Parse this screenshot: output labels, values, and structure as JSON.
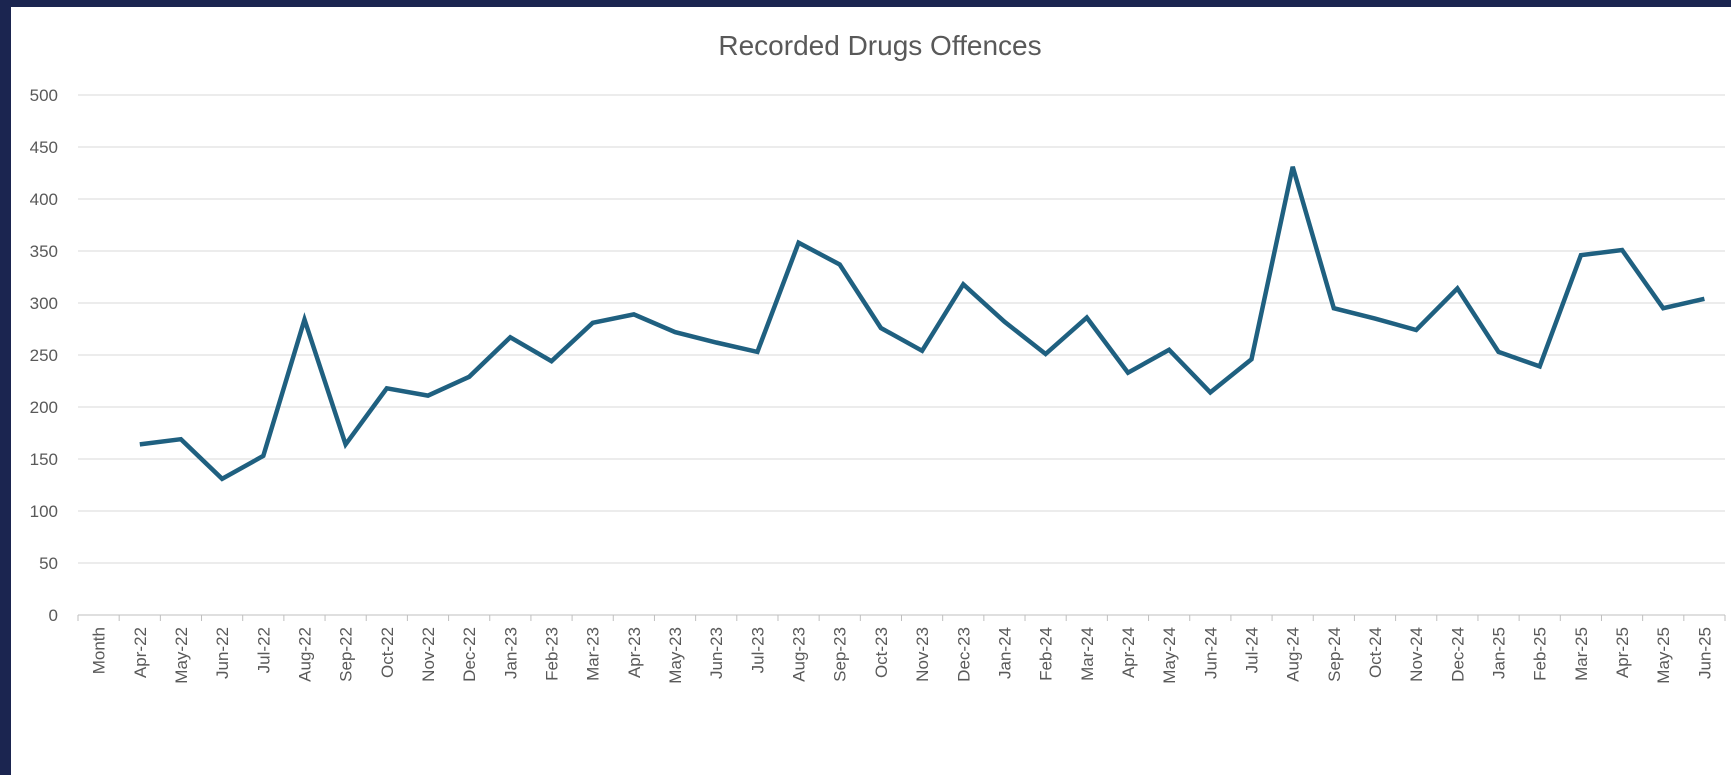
{
  "chart_data": {
    "type": "line",
    "title": "Recorded Drugs Offences",
    "xlabel": "",
    "ylabel": "",
    "ylim": [
      0,
      500
    ],
    "yticks": [
      "0",
      "50",
      "100",
      "150",
      "200",
      "250",
      "300",
      "350",
      "400",
      "450",
      "500"
    ],
    "grid": true,
    "legend": "none",
    "categories": [
      "Month",
      "Apr-22",
      "May-22",
      "Jun-22",
      "Jul-22",
      "Aug-22",
      "Sep-22",
      "Oct-22",
      "Nov-22",
      "Dec-22",
      "Jan-23",
      "Feb-23",
      "Mar-23",
      "Apr-23",
      "May-23",
      "Jun-23",
      "Jul-23",
      "Aug-23",
      "Sep-23",
      "Oct-23",
      "Nov-23",
      "Dec-23",
      "Jan-24",
      "Feb-24",
      "Mar-24",
      "Apr-24",
      "May-24",
      "Jun-24",
      "Jul-24",
      "Aug-24",
      "Sep-24",
      "Oct-24",
      "Nov-24",
      "Dec-24",
      "Jan-25",
      "Feb-25",
      "Mar-25",
      "Apr-25",
      "May-25",
      "Jun-25"
    ],
    "series": [
      {
        "color": "#1f6080",
        "values": [
          null,
          164,
          169,
          131,
          153,
          284,
          164,
          218,
          211,
          229,
          267,
          244,
          281,
          289,
          272,
          262,
          253,
          358,
          337,
          276,
          254,
          318,
          282,
          251,
          286,
          233,
          255,
          214,
          246,
          431,
          295,
          285,
          274,
          314,
          253,
          239,
          346,
          351,
          295,
          304
        ]
      }
    ]
  }
}
